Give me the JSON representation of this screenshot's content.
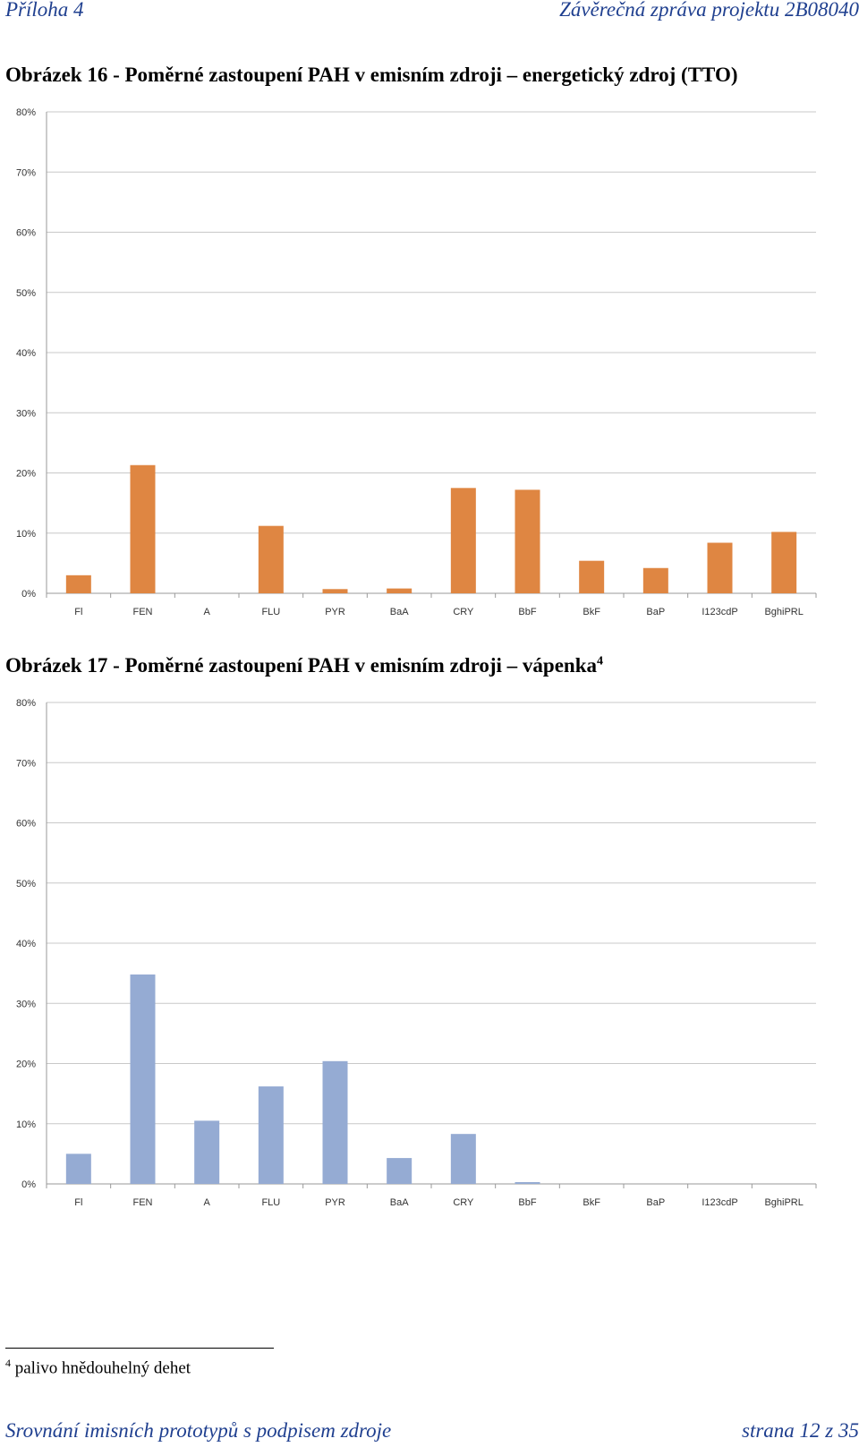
{
  "header": {
    "left": "Příloha 4",
    "right": "Závěrečná zpráva projektu 2B08040"
  },
  "captions": {
    "fig16": "Obrázek 16 - Poměrné zastoupení PAH v emisním zdroji – energetický zdroj (TTO)",
    "fig17": "Obrázek 17 - Poměrné zastoupení PAH v emisním zdroji – vápenka",
    "fig17_footnote_ref": "4"
  },
  "footnote": {
    "number": "4",
    "text": "palivo hnědouhelný dehet"
  },
  "footer": {
    "left": "Srovnání imisních prototypů s podpisem zdroje",
    "right": "strana 12 z 35"
  },
  "chart_data": [
    {
      "type": "bar",
      "categories": [
        "Fl",
        "FEN",
        "A",
        "FLU",
        "PYR",
        "BaA",
        "CRY",
        "BbF",
        "BkF",
        "BaP",
        "I123cdP",
        "BghiPRL"
      ],
      "values": [
        3.0,
        21.3,
        0.0,
        11.2,
        0.7,
        0.8,
        17.5,
        17.2,
        5.4,
        4.2,
        8.4,
        10.2
      ],
      "ylim": [
        0,
        80
      ],
      "yticks": [
        "0%",
        "10%",
        "20%",
        "30%",
        "40%",
        "50%",
        "60%",
        "70%",
        "80%"
      ],
      "grid": true,
      "color": "#df8642"
    },
    {
      "type": "bar",
      "categories": [
        "Fl",
        "FEN",
        "A",
        "FLU",
        "PYR",
        "BaA",
        "CRY",
        "BbF",
        "BkF",
        "BaP",
        "I123cdP",
        "BghiPRL"
      ],
      "values": [
        5.0,
        34.8,
        10.5,
        16.2,
        20.4,
        4.3,
        8.3,
        0.3,
        0.0,
        0.0,
        0.0,
        0.0
      ],
      "ylim": [
        0,
        80
      ],
      "yticks": [
        "0%",
        "10%",
        "20%",
        "30%",
        "40%",
        "50%",
        "60%",
        "70%",
        "80%"
      ],
      "grid": true,
      "color": "#95abd3"
    }
  ]
}
